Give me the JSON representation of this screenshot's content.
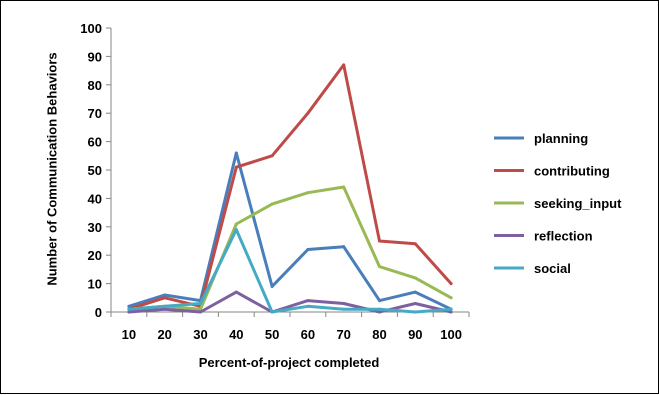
{
  "chart_data": {
    "type": "line",
    "title": "",
    "xlabel": "Percent-of-project completed",
    "ylabel": "Number of Communication Behaviors",
    "categories": [
      "10",
      "20",
      "30",
      "40",
      "50",
      "60",
      "70",
      "80",
      "90",
      "100"
    ],
    "yticks": [
      "0",
      "10",
      "20",
      "30",
      "40",
      "50",
      "60",
      "70",
      "80",
      "90",
      "100"
    ],
    "ylim": [
      0,
      100
    ],
    "grid": false,
    "legend": "right",
    "series": [
      {
        "name": "planning",
        "color": "#4a7ebb",
        "values": [
          2,
          6,
          4,
          56,
          9,
          22,
          23,
          4,
          7,
          1
        ]
      },
      {
        "name": "contributing",
        "color": "#be4b48",
        "values": [
          1,
          5,
          2,
          51,
          55,
          70,
          87,
          25,
          24,
          10
        ]
      },
      {
        "name": "seeking_input",
        "color": "#98b954",
        "values": [
          1,
          2,
          1,
          31,
          38,
          42,
          44,
          16,
          12,
          5
        ]
      },
      {
        "name": "reflection",
        "color": "#7d60a0",
        "values": [
          0,
          1,
          0,
          7,
          0,
          4,
          3,
          0,
          3,
          0
        ]
      },
      {
        "name": "social",
        "color": "#46aac5",
        "values": [
          1,
          2,
          3,
          29,
          0,
          2,
          1,
          1,
          0,
          1
        ]
      }
    ]
  }
}
